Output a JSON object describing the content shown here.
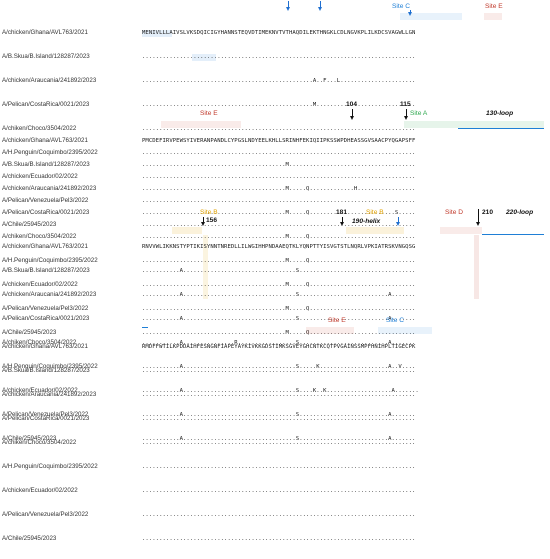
{
  "sequences": [
    "A/chicken/Ghana/AVL763/2021",
    "A/B.Skua/B.Island/128287/2023",
    "A/chicken/Araucania/241892/2023",
    "A/Pelican/CostaRica/0021/2023",
    "A/chiken/Choco/3504/2022",
    "A/H.Penguin/Coquimbo/2395/2022",
    "A/chicken/Ecuador/02/2022",
    "A/Pelican/Venezuela/Pel3/2022",
    "A/Chile/25945/2023"
  ],
  "blocks": [
    {
      "rows": [
        "MENIVLLLAIVSLVKSDQICIGYHANNSTEQVDTIMEKNVTVTHAQDILEKTHNGKLCDLNGVKPLILKDCSVAGWLLGN",
        "................................................................................",
        "..................................................A..F...L......................",
        "..................................................M.............................",
        "................................................................................",
        "................................................................................",
        "................................................................................",
        "................................................................................",
        "................................................................................"
      ]
    },
    {
      "rows": [
        "PMCDEFIRVPEWSYIVERANPANDLCYPGSLNDYEELKHLLSRINHFEKIQIIPKSSWPDHEASSGVSAACPYQGAPSFF",
        "..........................................M.....................................",
        "..........................................M.....Q.............H.................",
        "..........................................M.....Q.........................S.....",
        "..........................................M.....Q...............................",
        "..........................................M.....Q...............................",
        "..........................................M.....Q...............................",
        "..........................................M.....Q...............................",
        "..........................................M.....Q..............................."
      ]
    },
    {
      "rows": [
        "RNVVWLIKKNSTYPTIKISYNNTNREDLLILWGIHHPNDAAEQTKLYQNPTTYISVGTSTLNQRLVPKIATRSKVNGQSG",
        "...........A.................................S..................................",
        "...........A.................................S..........................A.......",
        "...........A.................................S..........................A.......",
        "...........A...............R.................S..........................A.......",
        "...........A.................................S.....K....................A..V....",
        "...........A.................................S....K..K...................A.......",
        "...........A.................................S..........................A.......",
        "...........A.................................S..........................A......."
      ]
    },
    {
      "rows": [
        "RMDFFWTILKPDDAIHFESNGNFIAPEYAYKIVKKGDSTIMKSGVEYGHCNTKCQTPVGAINSSMPFHNIHPLTIGECPK",
        "................................................................................",
        "................................................................................",
        "................................................................................",
        "................................................................................",
        "................................................................................",
        "................................................................................",
        "................................................................................",
        "................................................................................"
      ]
    }
  ],
  "annotations": {
    "b1_site_c": "Site C",
    "b1_site_e": "Site E",
    "b2_site_e": "Site E",
    "b2_pos104": "104",
    "b2_pos115": "115",
    "b2_site_a": "Site A",
    "b2_loop130": "130-loop",
    "b3_site_b1": "Site B",
    "b3_pos156": "156",
    "b3_pos181": "181",
    "b3_site_b2": "Site B",
    "b3_site_d": "Site D",
    "b3_pos210": "210",
    "b3_loop220": "220-loop",
    "b3_helix190": "190-helix",
    "b4_site_e": "Site E",
    "b4_site_c": "Site C"
  },
  "colors": {
    "site_red": "#c0392b",
    "site_blue": "#1f7fd6",
    "site_gold": "#e0a100",
    "site_green": "#2fa84f",
    "arrow_blue": "#1f6fd0"
  }
}
